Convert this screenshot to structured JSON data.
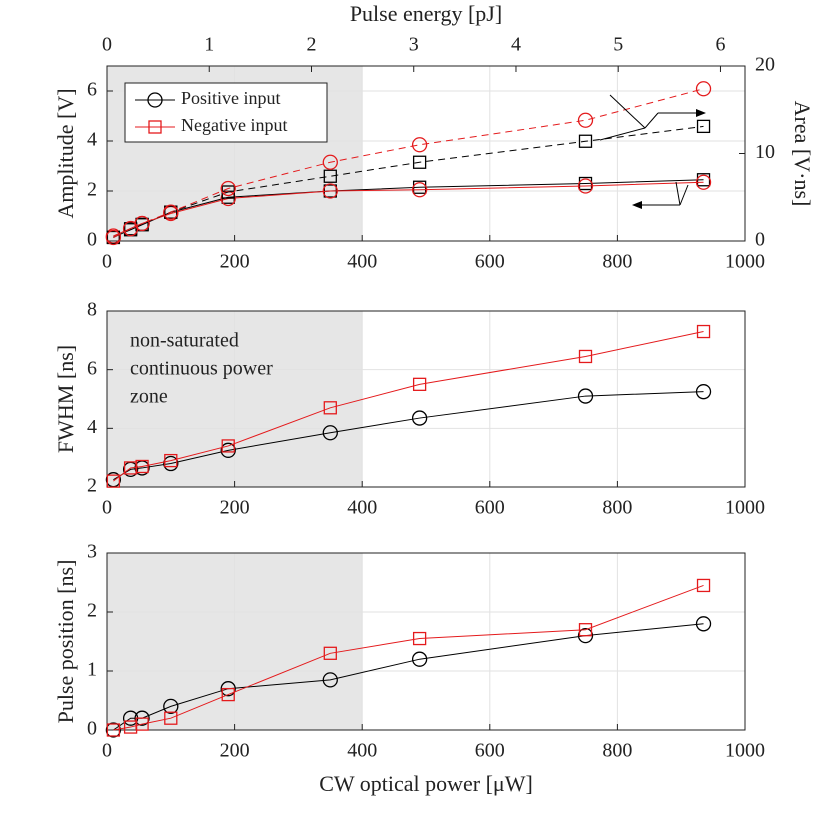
{
  "chart_data": [
    {
      "type": "line",
      "x": [
        10,
        37,
        55,
        100,
        190,
        350,
        490,
        750,
        935
      ],
      "xlim": [
        0,
        1000
      ],
      "xticks": [
        0,
        200,
        400,
        600,
        800,
        1000
      ],
      "x2label": "Pulse energy [pJ]",
      "x2lim": [
        0,
        6.24
      ],
      "x2ticks": [
        0,
        1,
        2,
        3,
        4,
        5,
        6
      ],
      "ylabel": "Amplitude [V]",
      "ylim": [
        0,
        7
      ],
      "yticks": [
        0,
        2,
        4,
        6
      ],
      "y2label": "Area [V·ns]",
      "y2lim": [
        0,
        20
      ],
      "y2ticks": [
        0,
        10,
        20
      ],
      "grid": true,
      "shade": [
        0,
        400
      ],
      "legend": [
        {
          "name": "Positive input",
          "color": "#000000",
          "marker": "circle"
        },
        {
          "name": "Negative input",
          "color": "#e41a1c",
          "marker": "square"
        }
      ],
      "series": [
        {
          "color": "#000000",
          "marker": "square",
          "dashed": false,
          "values": [
            0.15,
            0.45,
            0.65,
            1.15,
            1.75,
            2.0,
            2.15,
            2.3,
            2.45
          ]
        },
        {
          "color": "#e41a1c",
          "marker": "circle",
          "dashed": false,
          "values": [
            0.2,
            0.5,
            0.7,
            1.1,
            1.7,
            2.0,
            2.05,
            2.2,
            2.35
          ]
        },
        {
          "color": "#000000",
          "marker": "square",
          "dashed": true,
          "axis": "y2",
          "values": [
            0.4,
            1.4,
            1.9,
            3.3,
            5.6,
            7.4,
            9.0,
            11.4,
            13.1
          ]
        },
        {
          "color": "#e41a1c",
          "marker": "circle",
          "dashed": true,
          "axis": "y2",
          "values": [
            0.4,
            1.4,
            2.0,
            3.3,
            6.0,
            9.0,
            11.0,
            13.8,
            17.4
          ]
        }
      ]
    },
    {
      "type": "line",
      "x": [
        10,
        37,
        55,
        100,
        190,
        350,
        490,
        750,
        935
      ],
      "xlim": [
        0,
        1000
      ],
      "xticks": [
        0,
        200,
        400,
        600,
        800,
        1000
      ],
      "ylabel": "FWHM [ns]",
      "ylim": [
        2,
        8
      ],
      "yticks": [
        2,
        4,
        6,
        8
      ],
      "grid": true,
      "shade": [
        0,
        400
      ],
      "annotation": [
        "non-saturated",
        "continuous power",
        "zone"
      ],
      "series": [
        {
          "color": "#000000",
          "marker": "circle",
          "dashed": false,
          "values": [
            2.25,
            2.6,
            2.65,
            2.8,
            3.25,
            3.85,
            4.35,
            5.1,
            5.25
          ]
        },
        {
          "color": "#e41a1c",
          "marker": "square",
          "dashed": false,
          "values": [
            2.2,
            2.65,
            2.7,
            2.9,
            3.4,
            4.7,
            5.5,
            6.45,
            7.3
          ]
        }
      ]
    },
    {
      "type": "line",
      "x": [
        10,
        37,
        55,
        100,
        190,
        350,
        490,
        750,
        935
      ],
      "xlabel": "CW optical power [μW]",
      "xlim": [
        0,
        1000
      ],
      "xticks": [
        0,
        200,
        400,
        600,
        800,
        1000
      ],
      "ylabel": "Pulse position [ns]",
      "ylim": [
        0,
        3
      ],
      "yticks": [
        0,
        1,
        2,
        3
      ],
      "grid": true,
      "shade": [
        0,
        400
      ],
      "series": [
        {
          "color": "#000000",
          "marker": "circle",
          "dashed": false,
          "values": [
            0,
            0.2,
            0.2,
            0.4,
            0.7,
            0.85,
            1.2,
            1.6,
            1.8
          ]
        },
        {
          "color": "#e41a1c",
          "marker": "square",
          "dashed": false,
          "values": [
            0,
            0.05,
            0.1,
            0.2,
            0.6,
            1.3,
            1.55,
            1.7,
            2.45
          ]
        }
      ]
    }
  ]
}
